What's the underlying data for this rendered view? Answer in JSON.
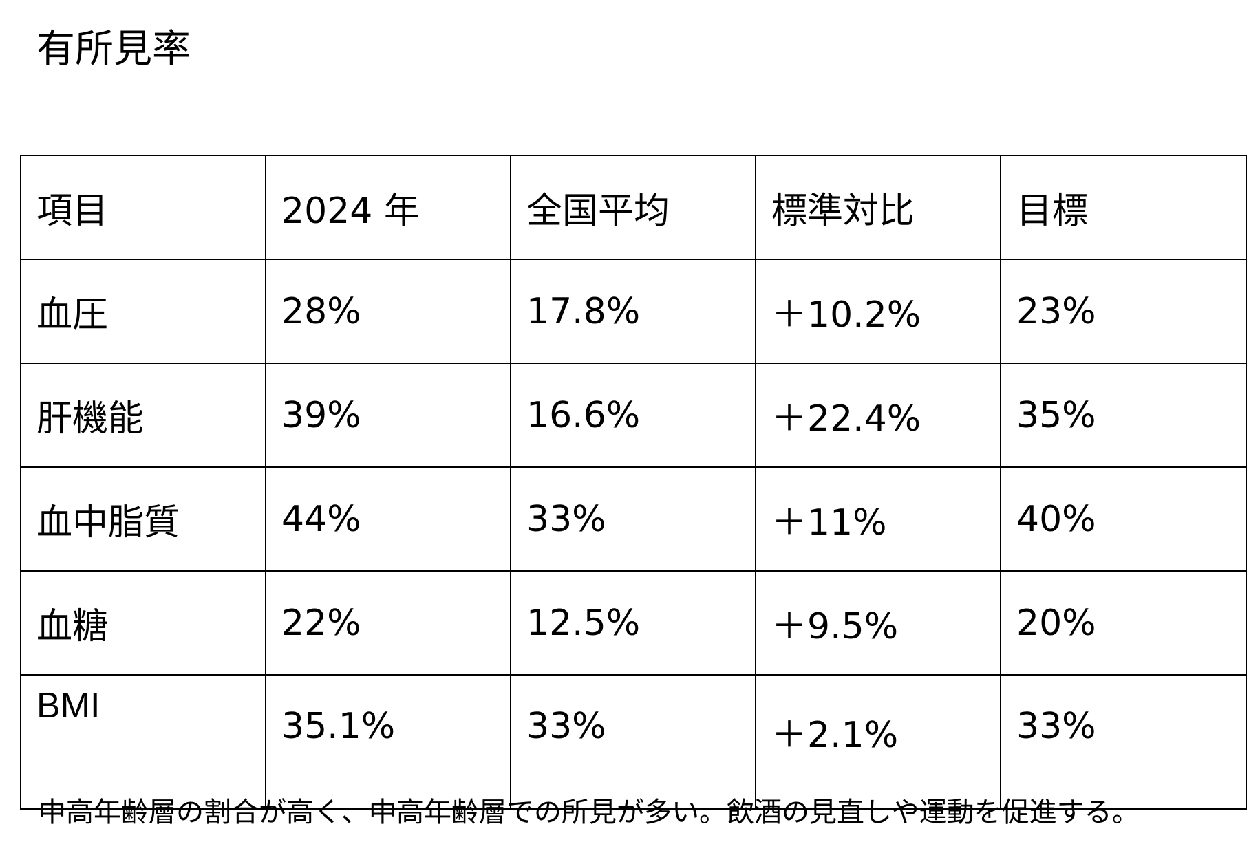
{
  "title": "有所見率",
  "table": {
    "headers": [
      "項目",
      "2024 年",
      "全国平均",
      "標準対比",
      "目標"
    ],
    "rows": [
      {
        "item": "血圧",
        "y2024": "28%",
        "national_avg": "17.8%",
        "vs_standard": "＋10.2%",
        "target": "23%"
      },
      {
        "item": "肝機能",
        "y2024": "39%",
        "national_avg": "16.6%",
        "vs_standard": "＋22.4%",
        "target": "35%"
      },
      {
        "item": "血中脂質",
        "y2024": "44%",
        "national_avg": "33%",
        "vs_standard": "＋11%",
        "target": "40%"
      },
      {
        "item": "血糖",
        "y2024": "22%",
        "national_avg": "12.5%",
        "vs_standard": "＋9.5%",
        "target": "20%"
      },
      {
        "item": "BMI",
        "y2024": "35.1%",
        "national_avg": "33%",
        "vs_standard": "＋2.1%",
        "target": "33%"
      }
    ]
  },
  "note": "中高年齢層の割合が高く、中高年齢層での所見が多い。飲酒の見直しや運動を促進する。"
}
